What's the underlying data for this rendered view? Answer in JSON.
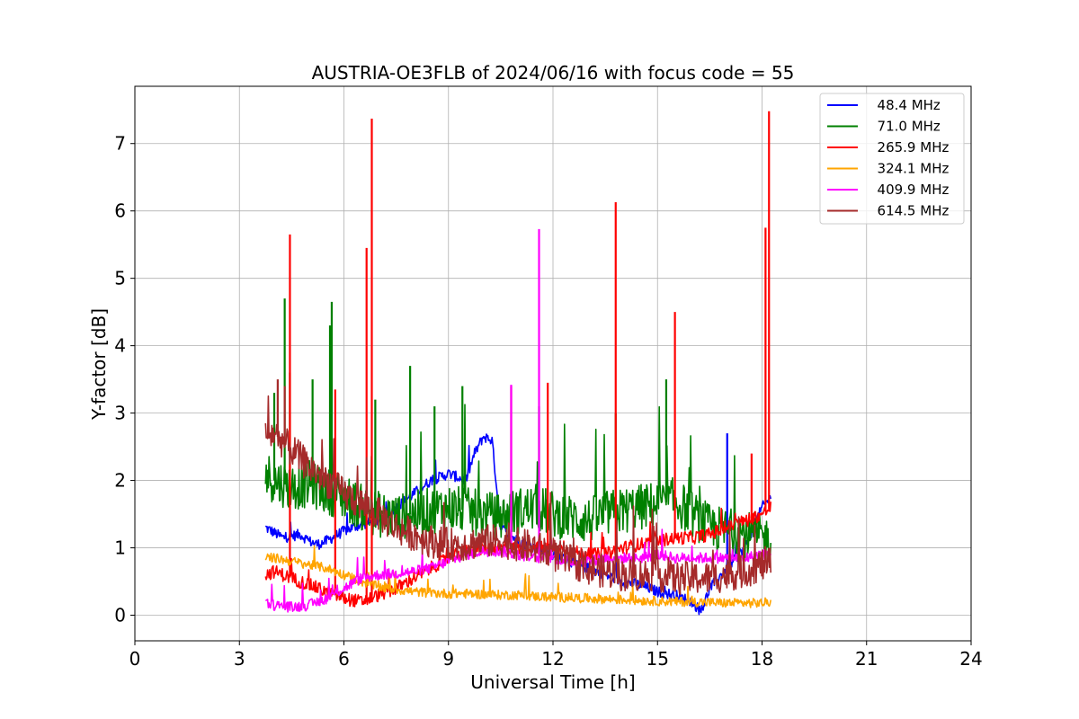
{
  "chart_data": {
    "type": "line",
    "title": "AUSTRIA-OE3FLB of 2024/06/16 with focus code = 55",
    "xlabel": "Universal Time [h]",
    "ylabel": "Y-factor [dB]",
    "xlim": [
      0,
      24
    ],
    "ylim": [
      -0.38,
      7.85
    ],
    "xticks": [
      "0",
      "3",
      "6",
      "9",
      "12",
      "15",
      "18",
      "21",
      "24"
    ],
    "yticks": [
      "0",
      "1",
      "2",
      "3",
      "4",
      "5",
      "6",
      "7"
    ],
    "grid": true,
    "legend_position": "top-right",
    "series": [
      {
        "name": "  48.4 MHz",
        "color": "#0000ff",
        "x": [
          3.75,
          4.25,
          4.75,
          5.0,
          5.25,
          5.5,
          6.0,
          6.5,
          7.0,
          7.5,
          8.0,
          8.5,
          9.0,
          9.5,
          9.75,
          10.0,
          10.25,
          10.5,
          11.0,
          11.5,
          12.0,
          12.5,
          13.0,
          13.5,
          14.0,
          14.5,
          15.0,
          15.5,
          16.0,
          16.25,
          16.5,
          17.0,
          17.5,
          18.0,
          18.25
        ],
        "y": [
          1.3,
          1.15,
          1.2,
          1.1,
          1.05,
          1.1,
          1.25,
          1.35,
          1.4,
          1.6,
          1.8,
          2.0,
          2.1,
          2.0,
          2.4,
          2.65,
          2.6,
          1.3,
          1.1,
          1.0,
          0.9,
          0.8,
          0.7,
          0.6,
          0.5,
          0.45,
          0.35,
          0.3,
          0.2,
          0.05,
          0.4,
          0.7,
          1.0,
          1.6,
          1.75
        ],
        "spikes": [
          [
            17.0,
            2.7
          ]
        ]
      },
      {
        "name": "  71.0 MHz",
        "color": "#008000",
        "x": [
          3.75,
          4.0,
          4.5,
          5.0,
          5.5,
          6.0,
          6.5,
          7.0,
          7.5,
          8.0,
          8.5,
          9.0,
          9.5,
          10.0,
          10.5,
          11.0,
          11.5,
          12.0,
          12.5,
          13.0,
          13.5,
          14.0,
          14.5,
          15.0,
          15.5,
          16.0,
          16.5,
          17.0,
          17.5,
          18.0,
          18.25
        ],
        "y": [
          2.1,
          2.0,
          1.9,
          1.95,
          1.85,
          1.75,
          1.6,
          1.5,
          1.45,
          1.5,
          1.55,
          1.6,
          1.55,
          1.5,
          1.45,
          1.55,
          1.6,
          1.5,
          1.45,
          1.4,
          1.5,
          1.55,
          1.6,
          1.65,
          1.7,
          1.5,
          1.3,
          1.25,
          1.2,
          1.15,
          1.1
        ],
        "spikes": [
          [
            4.3,
            4.7
          ],
          [
            4.45,
            3.6
          ],
          [
            5.6,
            4.3
          ],
          [
            5.65,
            4.65
          ],
          [
            7.9,
            3.7
          ],
          [
            9.4,
            3.4
          ],
          [
            11.6,
            3.1
          ],
          [
            13.8,
            3.0
          ],
          [
            15.25,
            3.5
          ],
          [
            4.0,
            3.3
          ],
          [
            5.1,
            3.5
          ],
          [
            6.9,
            3.2
          ],
          [
            8.6,
            3.1
          ]
        ]
      },
      {
        "name": "  265.9 MHz",
        "color": "#ff0000",
        "x": [
          3.75,
          4.0,
          4.5,
          5.0,
          5.5,
          6.0,
          6.5,
          7.0,
          7.5,
          8.0,
          8.5,
          9.0,
          9.5,
          10.0,
          10.5,
          11.0,
          11.5,
          12.0,
          12.5,
          13.0,
          13.5,
          14.0,
          14.5,
          15.0,
          15.5,
          16.0,
          16.5,
          17.0,
          17.5,
          18.0,
          18.25
        ],
        "y": [
          0.6,
          0.65,
          0.55,
          0.45,
          0.35,
          0.25,
          0.2,
          0.3,
          0.4,
          0.55,
          0.7,
          0.85,
          0.95,
          1.0,
          1.0,
          1.0,
          1.0,
          1.0,
          0.95,
          0.9,
          0.9,
          1.0,
          1.05,
          1.1,
          1.15,
          1.15,
          1.2,
          1.3,
          1.4,
          1.5,
          1.6
        ],
        "spikes": [
          [
            4.45,
            5.65
          ],
          [
            5.75,
            3.35
          ],
          [
            6.65,
            5.45
          ],
          [
            6.8,
            7.37
          ],
          [
            10.8,
            3.4
          ],
          [
            11.85,
            3.45
          ],
          [
            13.8,
            6.13
          ],
          [
            15.5,
            4.5
          ],
          [
            17.7,
            2.4
          ],
          [
            18.1,
            5.75
          ],
          [
            18.2,
            7.48
          ]
        ]
      },
      {
        "name": "  324.1 MHz",
        "color": "#ffa500",
        "x": [
          3.75,
          4.0,
          4.5,
          5.0,
          5.5,
          6.0,
          6.5,
          7.0,
          7.5,
          8.0,
          8.5,
          9.0,
          9.5,
          10.0,
          10.5,
          11.0,
          11.5,
          12.0,
          12.5,
          13.0,
          13.5,
          14.0,
          14.5,
          15.0,
          15.5,
          16.0,
          16.5,
          17.0,
          17.5,
          18.0,
          18.25
        ],
        "y": [
          0.85,
          0.85,
          0.8,
          0.75,
          0.7,
          0.6,
          0.5,
          0.42,
          0.38,
          0.35,
          0.33,
          0.32,
          0.32,
          0.31,
          0.3,
          0.3,
          0.28,
          0.27,
          0.26,
          0.25,
          0.24,
          0.23,
          0.22,
          0.21,
          0.2,
          0.2,
          0.19,
          0.18,
          0.18,
          0.18,
          0.2
        ],
        "spikes": []
      },
      {
        "name": "  409.9 MHz",
        "color": "#ff00ff",
        "x": [
          3.75,
          4.0,
          4.5,
          5.0,
          5.5,
          6.0,
          6.5,
          7.0,
          7.5,
          8.0,
          8.5,
          9.0,
          9.5,
          10.0,
          10.5,
          11.0,
          11.5,
          12.0,
          12.5,
          13.0,
          13.5,
          14.0,
          14.5,
          15.0,
          15.5,
          16.0,
          16.5,
          17.0,
          17.5,
          18.0,
          18.25
        ],
        "y": [
          0.2,
          0.15,
          0.12,
          0.15,
          0.25,
          0.4,
          0.55,
          0.6,
          0.62,
          0.65,
          0.7,
          0.8,
          0.9,
          0.95,
          0.95,
          0.9,
          0.85,
          0.85,
          0.8,
          0.8,
          0.85,
          0.85,
          0.85,
          0.9,
          0.85,
          0.85,
          0.85,
          0.85,
          0.85,
          0.9,
          0.9
        ],
        "spikes": [
          [
            10.8,
            3.42
          ],
          [
            11.6,
            5.73
          ]
        ]
      },
      {
        "name": "  614.5 MHz",
        "color": "#a52a2a",
        "x": [
          3.75,
          4.0,
          4.5,
          5.0,
          5.5,
          6.0,
          6.5,
          7.0,
          7.5,
          8.0,
          8.5,
          9.0,
          9.5,
          10.0,
          10.5,
          11.0,
          11.5,
          12.0,
          12.5,
          13.0,
          13.5,
          14.0,
          14.5,
          15.0,
          15.5,
          16.0,
          16.5,
          17.0,
          17.5,
          18.0,
          18.25
        ],
        "y": [
          2.65,
          2.7,
          2.45,
          2.2,
          2.0,
          1.8,
          1.65,
          1.5,
          1.3,
          1.2,
          1.1,
          1.05,
          1.05,
          1.1,
          1.1,
          1.05,
          1.0,
          0.9,
          0.8,
          0.7,
          0.65,
          0.6,
          0.6,
          0.6,
          0.55,
          0.55,
          0.55,
          0.6,
          0.65,
          0.75,
          0.8
        ],
        "spikes": [
          [
            4.1,
            3.5
          ],
          [
            4.3,
            3.4
          ]
        ]
      }
    ]
  }
}
